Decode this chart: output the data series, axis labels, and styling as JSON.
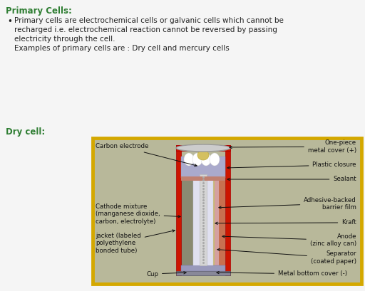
{
  "bg_color": "#f5f5f5",
  "title": "Primary Cells:",
  "title_color": "#2e7d32",
  "bullet_lines": [
    "Primary cells are electrochemical cells or galvanic cells which cannot be",
    "recharged i.e. electrochemical reaction cannot be reversed by passing",
    "electricity through the cell."
  ],
  "example_text": "Examples of primary cells are : Dry cell and mercury cells",
  "dry_cell_label": "Dry cell:",
  "dry_cell_color": "#2e7d32",
  "text_color": "#222222",
  "font_size_title": 8.5,
  "font_size_body": 7.5,
  "font_size_label": 6.2,
  "box_edge_color": "#d4a800",
  "box_bg_color": "#b8b89a"
}
